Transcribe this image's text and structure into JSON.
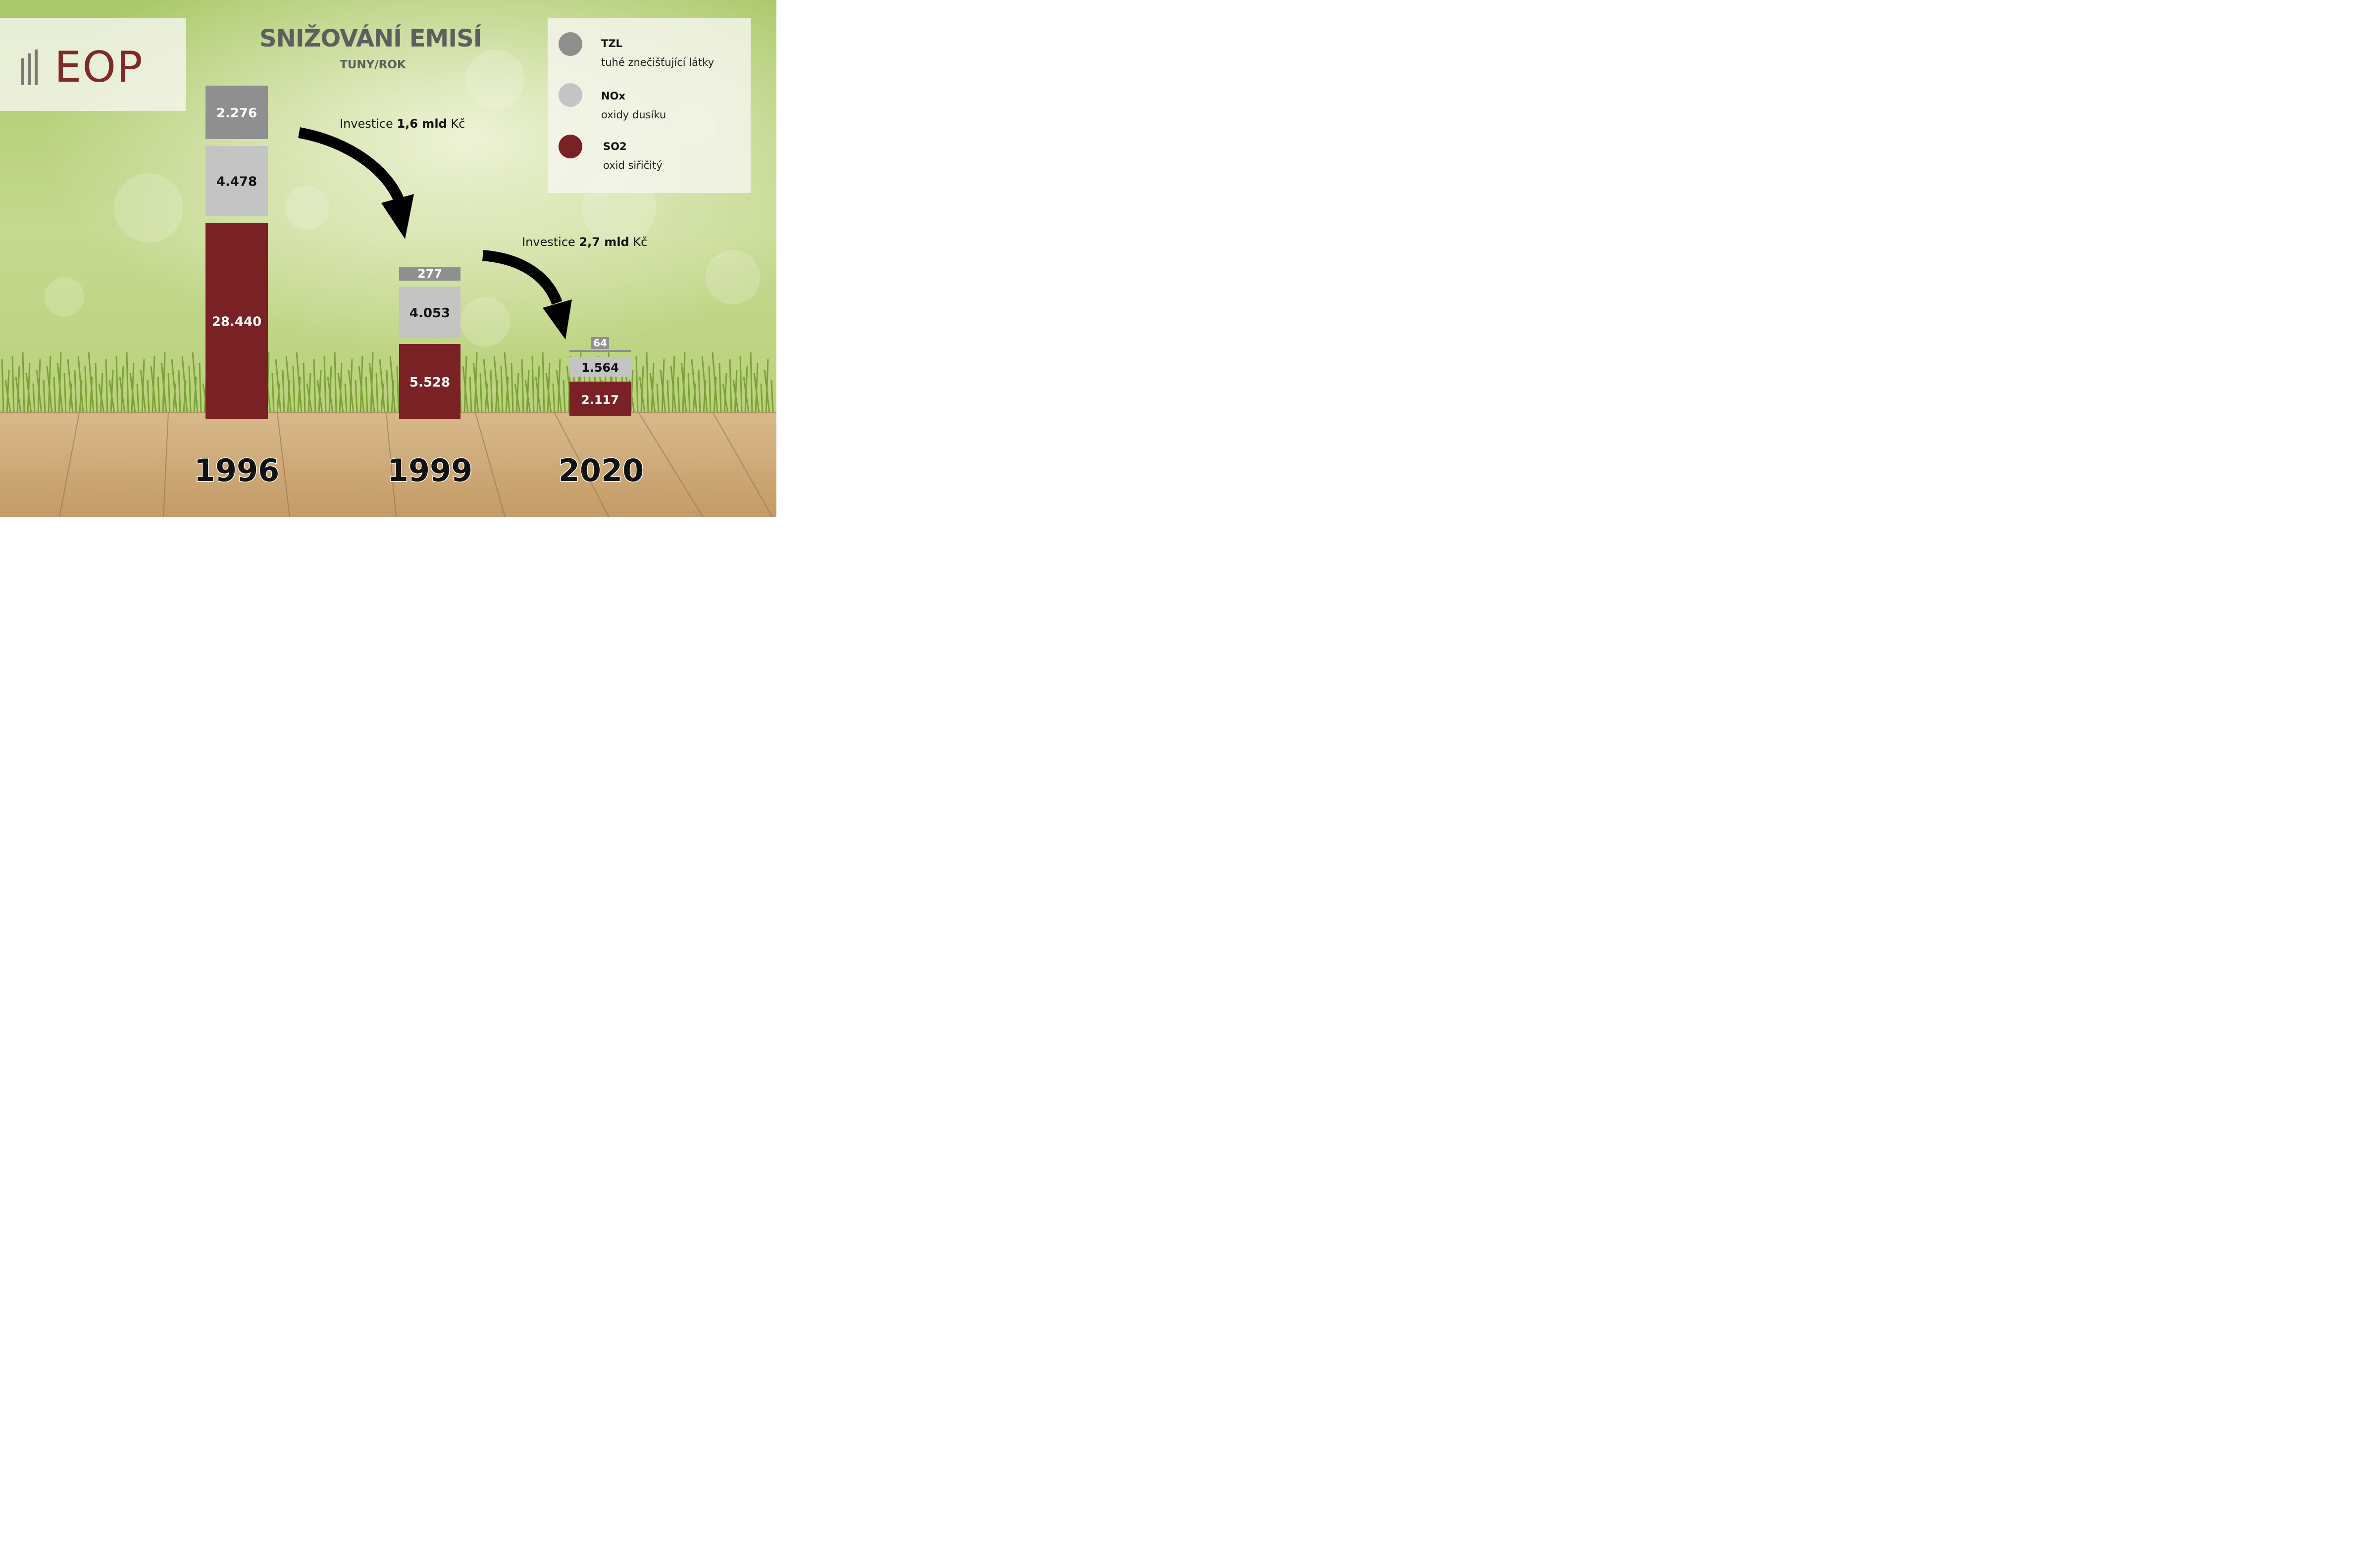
{
  "logo": {
    "text": "EOP"
  },
  "colors": {
    "tzl": "#8f8f8f",
    "nox": "#c4c4c4",
    "so2": "#7a2125",
    "logo": "#7e2a28",
    "title": "#5e5e5e"
  },
  "chart_data": {
    "type": "bar",
    "stacked": true,
    "title": "SNIŽOVÁNÍ EMISÍ",
    "subtitle": "TUNY/ROK",
    "categories": [
      "1996",
      "1999",
      "2020"
    ],
    "series": [
      {
        "key": "tzl",
        "name": "TZL",
        "description": "tuhé znečišťující látky",
        "color": "#8f8f8f",
        "text_color": "#ffffff",
        "values": [
          2276,
          277,
          64
        ],
        "labels": [
          "2.276",
          "277",
          "64"
        ]
      },
      {
        "key": "nox",
        "name": "NOx",
        "description": "oxidy dusíku",
        "color": "#c4c4c4",
        "text_color": "#111111",
        "values": [
          4478,
          4053,
          1564
        ],
        "labels": [
          "4.478",
          "4.053",
          "1.564"
        ]
      },
      {
        "key": "so2",
        "name": "SO2",
        "description": "oxid siřičitý",
        "color": "#7a2125",
        "text_color": "#ffffff",
        "values": [
          28440,
          5528,
          2117
        ],
        "labels": [
          "28.440",
          "5.528",
          "2.117"
        ]
      }
    ],
    "legend_position": "top-right",
    "annotations": [
      {
        "prefix": "Investice ",
        "amount": "1,6 mld",
        "suffix": " Kč",
        "from": "1996",
        "to": "1999"
      },
      {
        "prefix": "Investice ",
        "amount": "2,7 mld",
        "suffix": " Kč",
        "from": "1999",
        "to": "2020"
      }
    ]
  }
}
